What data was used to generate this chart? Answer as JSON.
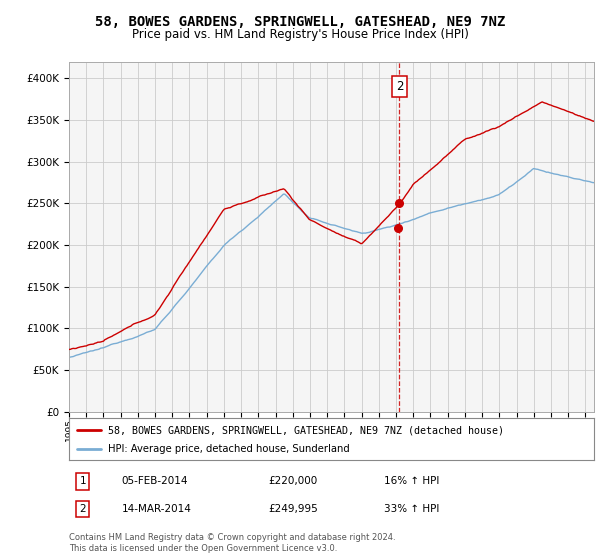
{
  "title": "58, BOWES GARDENS, SPRINGWELL, GATESHEAD, NE9 7NZ",
  "subtitle": "Price paid vs. HM Land Registry's House Price Index (HPI)",
  "legend_line1": "58, BOWES GARDENS, SPRINGWELL, GATESHEAD, NE9 7NZ (detached house)",
  "legend_line2": "HPI: Average price, detached house, Sunderland",
  "transaction1_date": "05-FEB-2014",
  "transaction1_price": "£220,000",
  "transaction1_hpi": "16% ↑ HPI",
  "transaction2_date": "14-MAR-2014",
  "transaction2_price": "£249,995",
  "transaction2_hpi": "33% ↑ HPI",
  "footer": "Contains HM Land Registry data © Crown copyright and database right 2024.\nThis data is licensed under the Open Government Licence v3.0.",
  "red_color": "#cc0000",
  "blue_color": "#7aadd4",
  "background_color": "#ffffff",
  "grid_color": "#cccccc",
  "ylim_min": 0,
  "ylim_max": 420000,
  "xlim_min": 1995,
  "xlim_max": 2025.5
}
